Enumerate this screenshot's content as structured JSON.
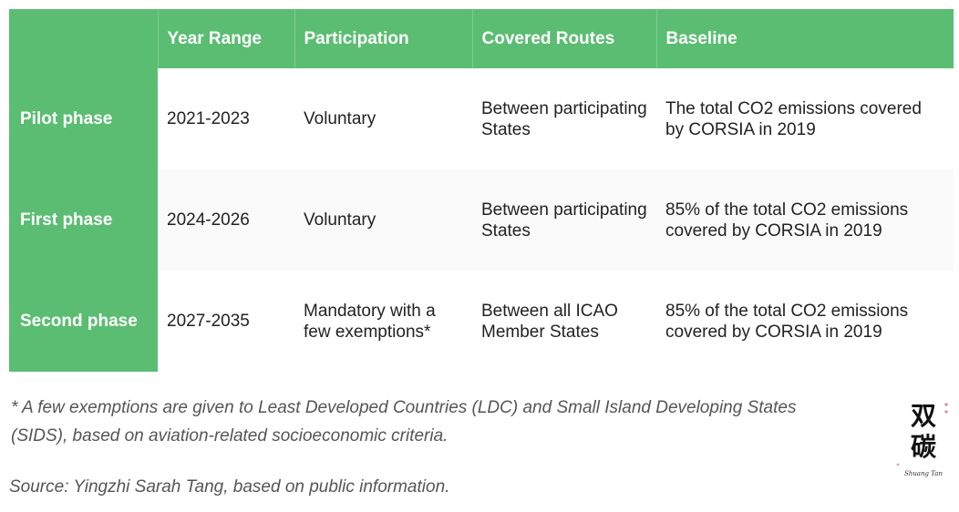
{
  "table": {
    "headers": [
      "",
      "Year Range",
      "Participation",
      "Covered Routes",
      "Baseline"
    ],
    "rows": [
      {
        "phase": "Pilot phase",
        "year_range": "2021-2023",
        "participation": "Voluntary",
        "routes": "Between participating States",
        "baseline": "The total CO2 emissions covered by CORSIA in 2019"
      },
      {
        "phase": "First phase",
        "year_range": "2024-2026",
        "participation": "Voluntary",
        "routes": "Between participating States",
        "baseline": "85% of the total CO2 emissions covered by CORSIA in 2019"
      },
      {
        "phase": "Second phase",
        "year_range": "2027-2035",
        "participation": "Mandatory with a few exemptions*",
        "routes": "Between all ICAO Member States",
        "baseline": "85% of the total CO2 emissions covered by CORSIA in 2019"
      }
    ]
  },
  "footnote": "* A few exemptions are given to Least Developed Countries (LDC) and Small Island Developing States (SIDS), based on aviation-related socioeconomic criteria.",
  "source": "Source: Yingzhi Sarah Tang, based on public information.",
  "logo": {
    "glyphs": "双碳",
    "caption": "Shuang Tan"
  },
  "colors": {
    "header_green": "#5bbd72",
    "text": "#222222",
    "note_text": "#555555"
  }
}
